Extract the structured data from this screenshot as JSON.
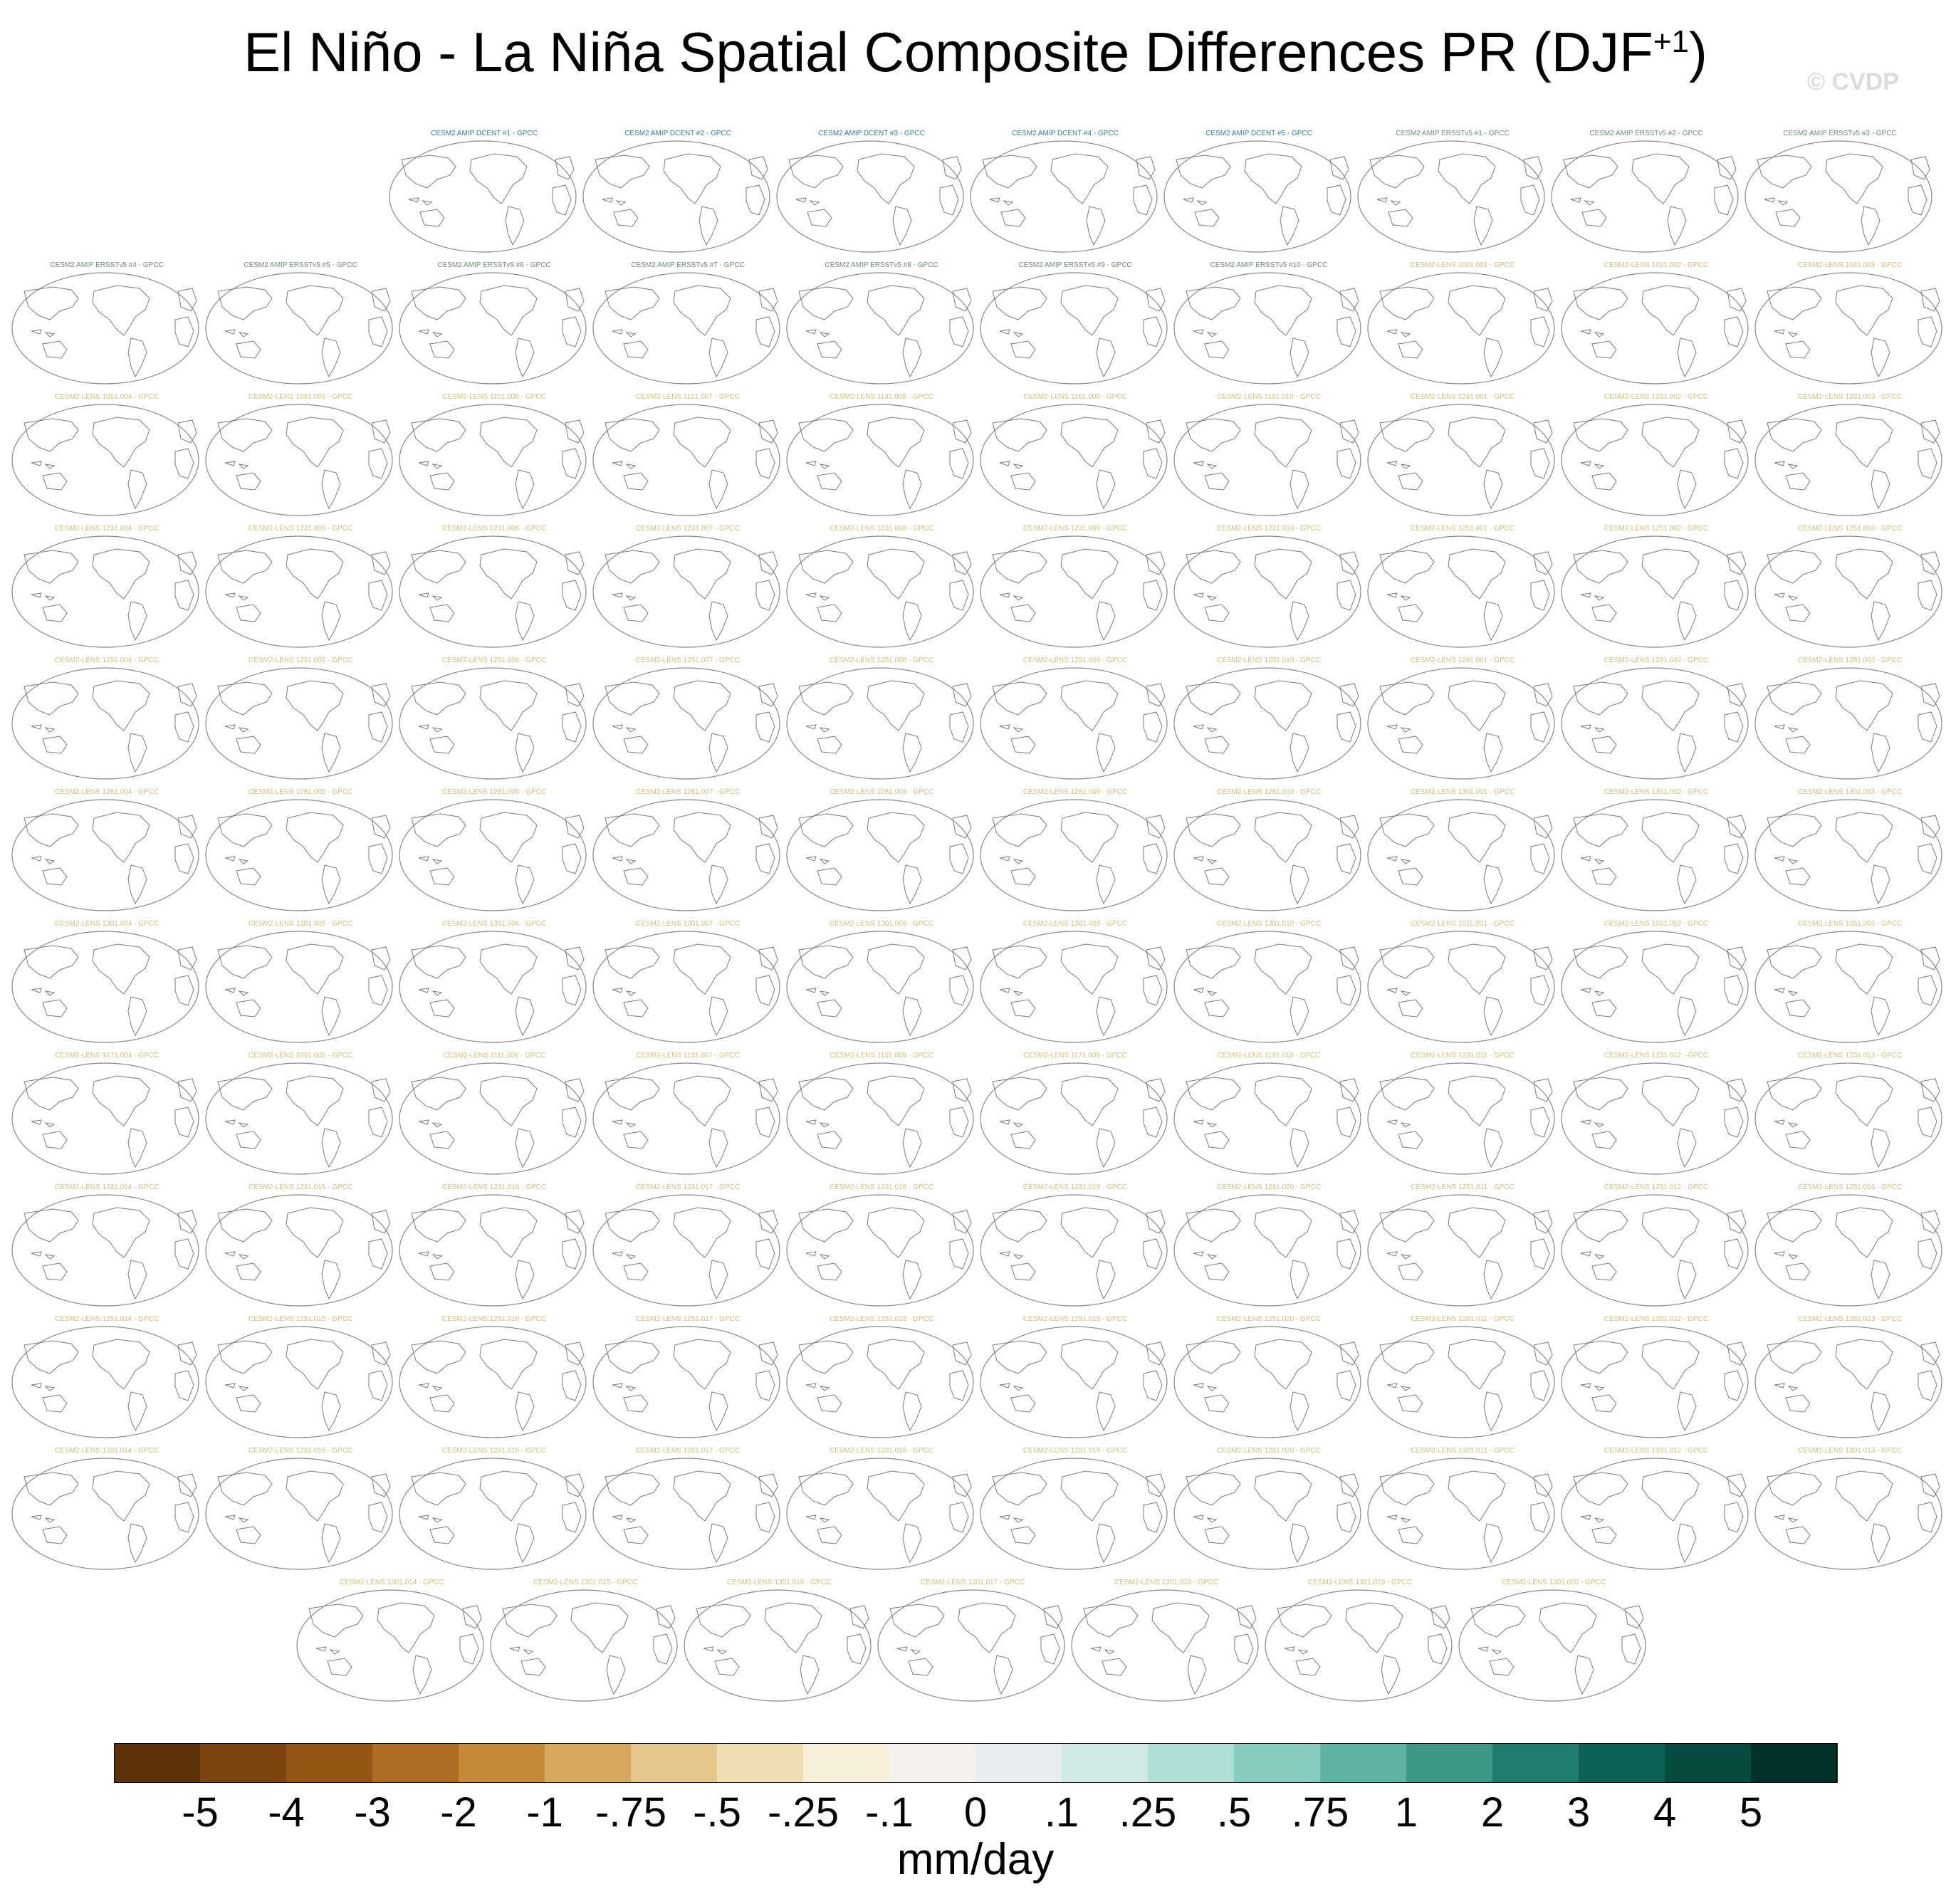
{
  "title": {
    "main": "El Niño - La Niña Spatial Composite Differences PR (DJF",
    "sup": "+1",
    "close": ")"
  },
  "watermark": "© CVDP",
  "chart_data": {
    "type": "heatmap",
    "title": "El Niño - La Niña Spatial Composite Differences PR (DJF+1)",
    "panels": [
      {
        "label": "CESM2 AMIP DCENT #1 - GPCC",
        "color": "#2e7da6"
      },
      {
        "label": "CESM2 AMIP DCENT #2 - GPCC",
        "color": "#2e7da6"
      },
      {
        "label": "CESM2 AMIP DCENT #3 - GPCC",
        "color": "#2e7da6"
      },
      {
        "label": "CESM2 AMIP DCENT #4 - GPCC",
        "color": "#2e7da6"
      },
      {
        "label": "CESM2 AMIP DCENT #5 - GPCC",
        "color": "#2e7da6"
      },
      {
        "label": "CESM2 AMIP ERSSTv5 #1 - GPCC",
        "color": "#6a8f78"
      },
      {
        "label": "CESM2 AMIP ERSSTv5 #2 - GPCC",
        "color": "#6a8f78"
      },
      {
        "label": "CESM2 AMIP ERSSTv5 #3 - GPCC",
        "color": "#6a8f78"
      },
      {
        "label": "CESM2 AMIP ERSSTv5 #4 - GPCC",
        "color": "#6a8f78"
      },
      {
        "label": "CESM2 AMIP ERSSTv5 #5 - GPCC",
        "color": "#6a8f78"
      },
      {
        "label": "CESM2 AMIP ERSSTv5 #6 - GPCC",
        "color": "#6a8f78"
      },
      {
        "label": "CESM2 AMIP ERSSTv5 #7 - GPCC",
        "color": "#6a8f78"
      },
      {
        "label": "CESM2 AMIP ERSSTv5 #8 - GPCC",
        "color": "#6a8f78"
      },
      {
        "label": "CESM2 AMIP ERSSTv5 #9 - GPCC",
        "color": "#6a8f78"
      },
      {
        "label": "CESM2 AMIP ERSSTv5 #10 - GPCC",
        "color": "#6a8f78"
      },
      {
        "label": "CESM2-LENS 1001.001 - GPCC",
        "color": "#c9c47a"
      },
      {
        "label": "CESM2-LENS 1021.002 - GPCC",
        "color": "#c9c47a"
      },
      {
        "label": "CESM2-LENS 1041.003 - GPCC",
        "color": "#c9c47a"
      },
      {
        "label": "CESM2-LENS 1061.004 - GPCC",
        "color": "#c9c47a"
      },
      {
        "label": "CESM2-LENS 1081.005 - GPCC",
        "color": "#c9c47a"
      },
      {
        "label": "CESM2-LENS 1101.006 - GPCC",
        "color": "#c9c47a"
      },
      {
        "label": "CESM2-LENS 1121.007 - GPCC",
        "color": "#c9c47a"
      },
      {
        "label": "CESM2-LENS 1141.008 - GPCC",
        "color": "#c9c47a"
      },
      {
        "label": "CESM2-LENS 1161.009 - GPCC",
        "color": "#c9c47a"
      },
      {
        "label": "CESM2-LENS 1181.010 - GPCC",
        "color": "#c9c47a"
      },
      {
        "label": "CESM2-LENS 1231.001 - GPCC",
        "color": "#c9c47a"
      },
      {
        "label": "CESM2-LENS 1231.002 - GPCC",
        "color": "#c9c47a"
      },
      {
        "label": "CESM2-LENS 1231.003 - GPCC",
        "color": "#c9c47a"
      },
      {
        "label": "CESM2-LENS 1231.004 - GPCC",
        "color": "#c9c47a"
      },
      {
        "label": "CESM2-LENS 1231.005 - GPCC",
        "color": "#c9c47a"
      },
      {
        "label": "CESM2-LENS 1231.006 - GPCC",
        "color": "#c9c47a"
      },
      {
        "label": "CESM2-LENS 1231.007 - GPCC",
        "color": "#c9c47a"
      },
      {
        "label": "CESM2-LENS 1231.008 - GPCC",
        "color": "#c9c47a"
      },
      {
        "label": "CESM2-LENS 1231.009 - GPCC",
        "color": "#c9c47a"
      },
      {
        "label": "CESM2-LENS 1231.010 - GPCC",
        "color": "#c9c47a"
      },
      {
        "label": "CESM2-LENS 1251.001 - GPCC",
        "color": "#c9c47a"
      },
      {
        "label": "CESM2-LENS 1251.002 - GPCC",
        "color": "#c9c47a"
      },
      {
        "label": "CESM2-LENS 1251.003 - GPCC",
        "color": "#c9c47a"
      },
      {
        "label": "CESM2-LENS 1251.004 - GPCC",
        "color": "#c9c47a"
      },
      {
        "label": "CESM2-LENS 1251.005 - GPCC",
        "color": "#c9c47a"
      },
      {
        "label": "CESM2-LENS 1251.006 - GPCC",
        "color": "#c9c47a"
      },
      {
        "label": "CESM2-LENS 1251.007 - GPCC",
        "color": "#c9c47a"
      },
      {
        "label": "CESM2-LENS 1251.008 - GPCC",
        "color": "#c9c47a"
      },
      {
        "label": "CESM2-LENS 1251.009 - GPCC",
        "color": "#c9c47a"
      },
      {
        "label": "CESM2-LENS 1251.010 - GPCC",
        "color": "#c9c47a"
      },
      {
        "label": "CESM2-LENS 1281.001 - GPCC",
        "color": "#c9c47a"
      },
      {
        "label": "CESM2-LENS 1281.002 - GPCC",
        "color": "#c9c47a"
      },
      {
        "label": "CESM2-LENS 1281.003 - GPCC",
        "color": "#c9c47a"
      },
      {
        "label": "CESM2-LENS 1281.004 - GPCC",
        "color": "#c9c47a"
      },
      {
        "label": "CESM2-LENS 1281.005 - GPCC",
        "color": "#c9c47a"
      },
      {
        "label": "CESM2-LENS 1281.006 - GPCC",
        "color": "#c9c47a"
      },
      {
        "label": "CESM2-LENS 1281.007 - GPCC",
        "color": "#c9c47a"
      },
      {
        "label": "CESM2-LENS 1281.008 - GPCC",
        "color": "#c9c47a"
      },
      {
        "label": "CESM2-LENS 1281.009 - GPCC",
        "color": "#c9c47a"
      },
      {
        "label": "CESM2-LENS 1281.010 - GPCC",
        "color": "#c9c47a"
      },
      {
        "label": "CESM2-LENS 1301.001 - GPCC",
        "color": "#c9c47a"
      },
      {
        "label": "CESM2-LENS 1301.002 - GPCC",
        "color": "#c9c47a"
      },
      {
        "label": "CESM2-LENS 1301.003 - GPCC",
        "color": "#c9c47a"
      },
      {
        "label": "CESM2-LENS 1301.004 - GPCC",
        "color": "#c9c47a"
      },
      {
        "label": "CESM2-LENS 1301.005 - GPCC",
        "color": "#c9c47a"
      },
      {
        "label": "CESM2-LENS 1301.006 - GPCC",
        "color": "#c9c47a"
      },
      {
        "label": "CESM2-LENS 1301.007 - GPCC",
        "color": "#c9c47a"
      },
      {
        "label": "CESM2-LENS 1301.008 - GPCC",
        "color": "#c9c47a"
      },
      {
        "label": "CESM2-LENS 1301.009 - GPCC",
        "color": "#c9c47a"
      },
      {
        "label": "CESM2-LENS 1301.010 - GPCC",
        "color": "#c9c47a"
      },
      {
        "label": "CESM2-LENS 1011.001 - GPCC",
        "color": "#c9c47a"
      },
      {
        "label": "CESM2-LENS 1031.002 - GPCC",
        "color": "#c9c47a"
      },
      {
        "label": "CESM2-LENS 1051.003 - GPCC",
        "color": "#c9c47a"
      },
      {
        "label": "CESM2-LENS 1071.004 - GPCC",
        "color": "#c9c47a"
      },
      {
        "label": "CESM2-LENS 1091.005 - GPCC",
        "color": "#c9c47a"
      },
      {
        "label": "CESM2-LENS 1111.006 - GPCC",
        "color": "#c9c47a"
      },
      {
        "label": "CESM2-LENS 1131.007 - GPCC",
        "color": "#c9c47a"
      },
      {
        "label": "CESM2-LENS 1151.008 - GPCC",
        "color": "#c9c47a"
      },
      {
        "label": "CESM2-LENS 1171.009 - GPCC",
        "color": "#c9c47a"
      },
      {
        "label": "CESM2-LENS 1191.010 - GPCC",
        "color": "#c9c47a"
      },
      {
        "label": "CESM2-LENS 1231.011 - GPCC",
        "color": "#c9c47a"
      },
      {
        "label": "CESM2-LENS 1231.012 - GPCC",
        "color": "#c9c47a"
      },
      {
        "label": "CESM2-LENS 1231.013 - GPCC",
        "color": "#c9c47a"
      },
      {
        "label": "CESM2-LENS 1231.014 - GPCC",
        "color": "#c9c47a"
      },
      {
        "label": "CESM2-LENS 1231.015 - GPCC",
        "color": "#c9c47a"
      },
      {
        "label": "CESM2-LENS 1231.016 - GPCC",
        "color": "#c9c47a"
      },
      {
        "label": "CESM2-LENS 1231.017 - GPCC",
        "color": "#c9c47a"
      },
      {
        "label": "CESM2-LENS 1231.018 - GPCC",
        "color": "#c9c47a"
      },
      {
        "label": "CESM2-LENS 1231.019 - GPCC",
        "color": "#c9c47a"
      },
      {
        "label": "CESM2-LENS 1231.020 - GPCC",
        "color": "#c9c47a"
      },
      {
        "label": "CESM2-LENS 1251.011 - GPCC",
        "color": "#c9c47a"
      },
      {
        "label": "CESM2-LENS 1251.012 - GPCC",
        "color": "#c9c47a"
      },
      {
        "label": "CESM2-LENS 1251.013 - GPCC",
        "color": "#c9c47a"
      },
      {
        "label": "CESM2-LENS 1251.014 - GPCC",
        "color": "#c9c47a"
      },
      {
        "label": "CESM2-LENS 1251.015 - GPCC",
        "color": "#c9c47a"
      },
      {
        "label": "CESM2-LENS 1251.016 - GPCC",
        "color": "#c9c47a"
      },
      {
        "label": "CESM2-LENS 1251.017 - GPCC",
        "color": "#c9c47a"
      },
      {
        "label": "CESM2-LENS 1251.018 - GPCC",
        "color": "#c9c47a"
      },
      {
        "label": "CESM2-LENS 1251.019 - GPCC",
        "color": "#c9c47a"
      },
      {
        "label": "CESM2-LENS 1251.020 - GPCC",
        "color": "#c9c47a"
      },
      {
        "label": "CESM2-LENS 1281.011 - GPCC",
        "color": "#c9c47a"
      },
      {
        "label": "CESM2-LENS 1281.012 - GPCC",
        "color": "#c9c47a"
      },
      {
        "label": "CESM2-LENS 1281.013 - GPCC",
        "color": "#c9c47a"
      },
      {
        "label": "CESM2-LENS 1281.014 - GPCC",
        "color": "#c9c47a"
      },
      {
        "label": "CESM2-LENS 1281.015 - GPCC",
        "color": "#c9c47a"
      },
      {
        "label": "CESM2-LENS 1281.016 - GPCC",
        "color": "#c9c47a"
      },
      {
        "label": "CESM2-LENS 1281.017 - GPCC",
        "color": "#c9c47a"
      },
      {
        "label": "CESM2-LENS 1281.018 - GPCC",
        "color": "#c9c47a"
      },
      {
        "label": "CESM2-LENS 1281.019 - GPCC",
        "color": "#c9c47a"
      },
      {
        "label": "CESM2-LENS 1281.020 - GPCC",
        "color": "#c9c47a"
      },
      {
        "label": "CESM2-LENS 1301.011 - GPCC",
        "color": "#c9c47a"
      },
      {
        "label": "CESM2-LENS 1301.012 - GPCC",
        "color": "#c9c47a"
      },
      {
        "label": "CESM2-LENS 1301.013 - GPCC",
        "color": "#c9c47a"
      },
      {
        "label": "CESM2-LENS 1301.014 - GPCC",
        "color": "#c9c47a"
      },
      {
        "label": "CESM2-LENS 1301.015 - GPCC",
        "color": "#c9c47a"
      },
      {
        "label": "CESM2-LENS 1301.016 - GPCC",
        "color": "#c9c47a"
      },
      {
        "label": "CESM2-LENS 1301.017 - GPCC",
        "color": "#c9c47a"
      },
      {
        "label": "CESM2-LENS 1301.018 - GPCC",
        "color": "#c9c47a"
      },
      {
        "label": "CESM2-LENS 1301.019 - GPCC",
        "color": "#c9c47a"
      },
      {
        "label": "CESM2-LENS 1301.020 - GPCC",
        "color": "#c9c47a"
      }
    ],
    "colorbar": {
      "units": "mm/day",
      "tick_labels": [
        "-5",
        "-4",
        "-3",
        "-2",
        "-1",
        "-.75",
        "-.5",
        "-.25",
        "-.1",
        "0",
        ".1",
        ".25",
        ".5",
        ".75",
        "1",
        "2",
        "3",
        "4",
        "5"
      ],
      "colors": [
        "#5c3209",
        "#7c4510",
        "#955515",
        "#ad6d22",
        "#c58a38",
        "#d5a85c",
        "#e5c78b",
        "#f0dfb3",
        "#f7efd8",
        "#f4f2ee",
        "#e6efed",
        "#cfe9e4",
        "#aedfd6",
        "#87cdbf",
        "#5fb3a5",
        "#3d9888",
        "#1e7d6e",
        "#0c6355",
        "#064b3f",
        "#033229"
      ]
    }
  }
}
